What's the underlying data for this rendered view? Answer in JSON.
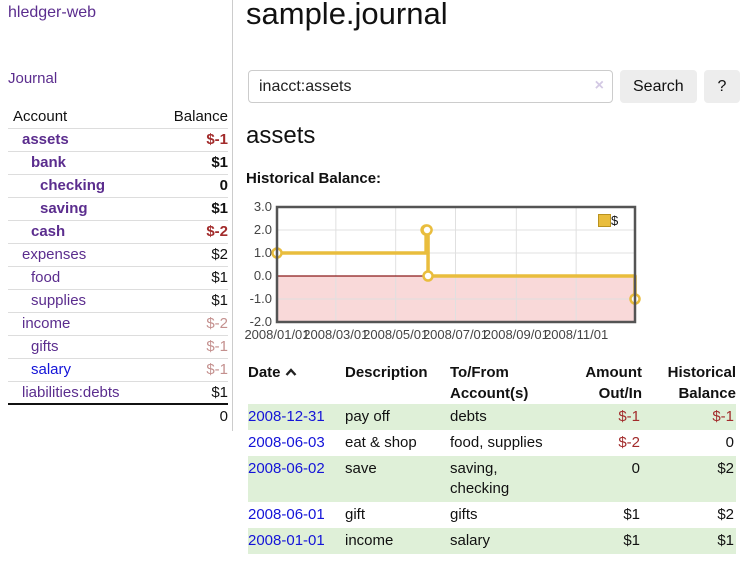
{
  "app": {
    "title": "hledger-web",
    "nav_journal": "Journal"
  },
  "sidebar": {
    "col_account": "Account",
    "col_balance": "Balance",
    "accounts": [
      {
        "label": "assets",
        "indent": 1,
        "bold": true,
        "link_style": "purple",
        "balance": "$-1",
        "balance_style": "neg"
      },
      {
        "label": "bank",
        "indent": 2,
        "bold": true,
        "link_style": "purple",
        "balance": "$1",
        "balance_style": ""
      },
      {
        "label": "checking",
        "indent": 3,
        "bold": true,
        "link_style": "purple",
        "balance": "0",
        "balance_style": ""
      },
      {
        "label": "saving",
        "indent": 3,
        "bold": true,
        "link_style": "purple",
        "balance": "$1",
        "balance_style": ""
      },
      {
        "label": "cash",
        "indent": 2,
        "bold": true,
        "link_style": "purple",
        "balance": "$-2",
        "balance_style": "neg"
      },
      {
        "label": "expenses",
        "indent": 1,
        "bold": false,
        "link_style": "purple",
        "balance": "$2",
        "balance_style": ""
      },
      {
        "label": "food",
        "indent": 2,
        "bold": false,
        "link_style": "purple",
        "balance": "$1",
        "balance_style": ""
      },
      {
        "label": "supplies",
        "indent": 2,
        "bold": false,
        "link_style": "purple",
        "balance": "$1",
        "balance_style": ""
      },
      {
        "label": "income",
        "indent": 1,
        "bold": false,
        "link_style": "purple",
        "balance": "$-2",
        "balance_style": "neg-faded"
      },
      {
        "label": "gifts",
        "indent": 2,
        "bold": false,
        "link_style": "purple",
        "balance": "$-1",
        "balance_style": "neg-faded"
      },
      {
        "label": "salary",
        "indent": 2,
        "bold": false,
        "link_style": "blue",
        "balance": "$-1",
        "balance_style": "neg-faded"
      },
      {
        "label": "liabilities:debts",
        "indent": 1,
        "bold": false,
        "link_style": "purple",
        "balance": "$1",
        "balance_style": ""
      }
    ],
    "total": "0"
  },
  "main": {
    "title": "sample.journal",
    "search": {
      "value": "inacct:assets",
      "clear_icon": "×",
      "button_label": "Search",
      "help_label": "?"
    },
    "account_heading": "assets",
    "chart_heading": "Historical Balance:"
  },
  "chart_data": {
    "type": "line",
    "title": "Historical Balance",
    "step": true,
    "series": [
      {
        "name": "$",
        "points": [
          [
            "2008-01-01",
            1
          ],
          [
            "2008-06-01",
            2
          ],
          [
            "2008-06-02",
            2
          ],
          [
            "2008-06-03",
            0
          ],
          [
            "2008-12-31",
            -1
          ]
        ]
      }
    ],
    "x_ticks": [
      "2008/01/01",
      "2008/03/01",
      "2008/05/01",
      "2008/07/01",
      "2008/09/01",
      "2008/11/01"
    ],
    "y_ticks": [
      "3.0",
      "2.0",
      "1.0",
      "0.0",
      "-1.0",
      "-2.0"
    ],
    "ylim": [
      -2,
      3
    ],
    "legend": {
      "label": "$",
      "position": "top-right"
    },
    "colors": {
      "line": "#e9bd3d",
      "marker_fill": "#ffffff",
      "negative_fill": "#f9d9d9",
      "zero_line": "#8b1a1a",
      "grid": "#e0e0e0",
      "border": "#545454"
    }
  },
  "register": {
    "headers": {
      "date": "Date",
      "description": "Description",
      "tofrom": "To/From Account(s)",
      "amount": "Amount Out/In",
      "balance": "Historical Balance"
    },
    "rows": [
      {
        "date": "2008-12-31",
        "description": "pay off",
        "accounts": "debts",
        "amount": "$-1",
        "amount_style": "neg",
        "balance": "$-1",
        "balance_style": "neg"
      },
      {
        "date": "2008-06-03",
        "description": "eat & shop",
        "accounts": "food, supplies",
        "amount": "$-2",
        "amount_style": "neg",
        "balance": "0",
        "balance_style": ""
      },
      {
        "date": "2008-06-02",
        "description": "save",
        "accounts": "saving, checking",
        "amount": "0",
        "amount_style": "",
        "balance": "$2",
        "balance_style": ""
      },
      {
        "date": "2008-06-01",
        "description": "gift",
        "accounts": "gifts",
        "amount": "$1",
        "amount_style": "",
        "balance": "$2",
        "balance_style": ""
      },
      {
        "date": "2008-01-01",
        "description": "income",
        "accounts": "salary",
        "amount": "$1",
        "amount_style": "",
        "balance": "$1",
        "balance_style": ""
      }
    ]
  },
  "colors": {
    "link_purple": "#5b2d8e",
    "link_blue": "#1414d8",
    "negative": "#a22b2b",
    "negative_faded": "#c4908e",
    "row_stripe_green": "#dff0d8"
  }
}
